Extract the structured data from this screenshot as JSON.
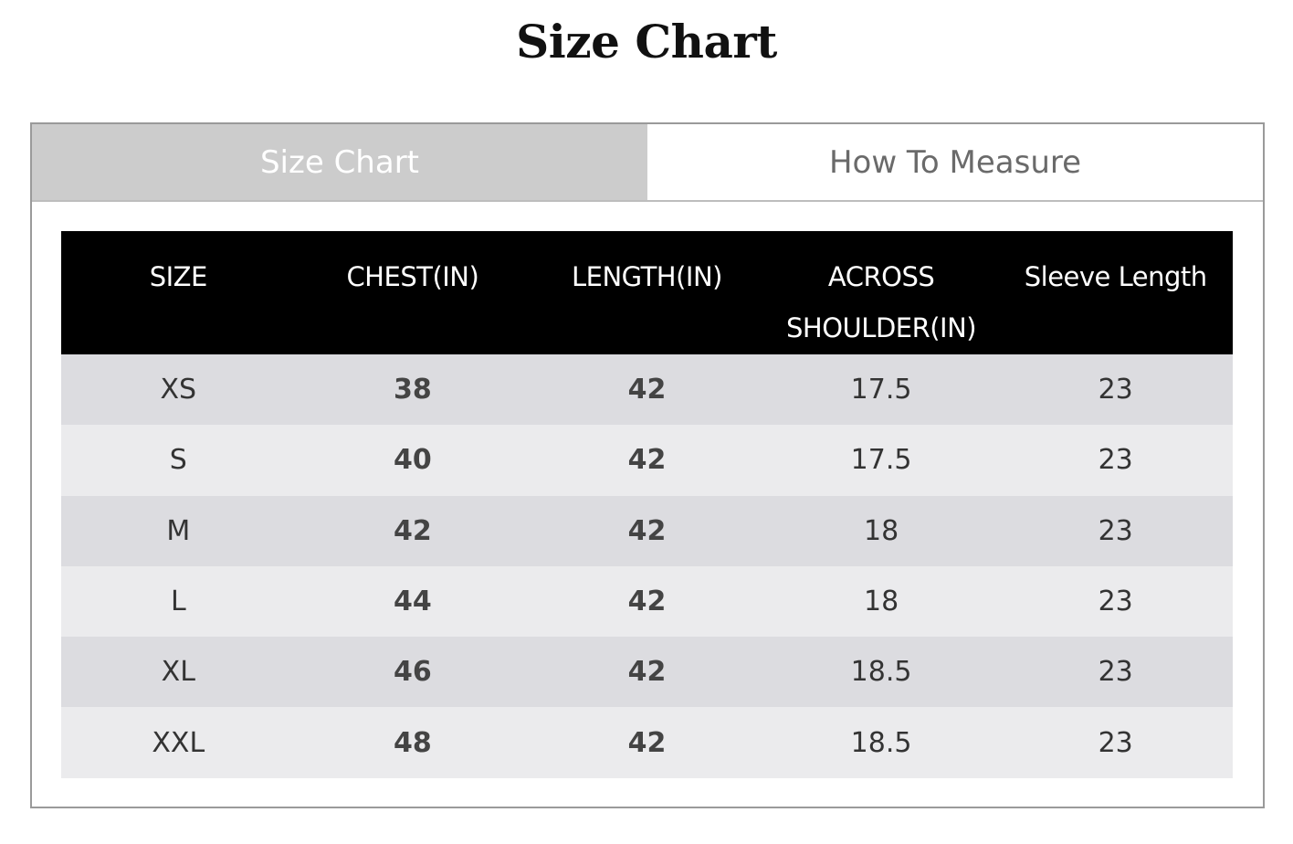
{
  "title": "Size Chart",
  "tabs": [
    {
      "label": "Size Chart",
      "active": true
    },
    {
      "label": "How To Measure",
      "active": false
    }
  ],
  "colors": {
    "active_tab": "#cccccc",
    "header_bg": "#000000",
    "row_odd": "#dcdce0",
    "row_even": "#ebebed"
  },
  "table": {
    "headers": [
      "SIZE",
      "CHEST(IN)",
      "LENGTH(IN)",
      "ACROSS SHOULDER(IN)",
      "Sleeve Length"
    ],
    "rows": [
      [
        "XS",
        "38",
        "42",
        "17.5",
        "23"
      ],
      [
        "S",
        "40",
        "42",
        "17.5",
        "23"
      ],
      [
        "M",
        "42",
        "42",
        "18",
        "23"
      ],
      [
        "L",
        "44",
        "42",
        "18",
        "23"
      ],
      [
        "XL",
        "46",
        "42",
        "18.5",
        "23"
      ],
      [
        "XXL",
        "48",
        "42",
        "18.5",
        "23"
      ]
    ]
  }
}
